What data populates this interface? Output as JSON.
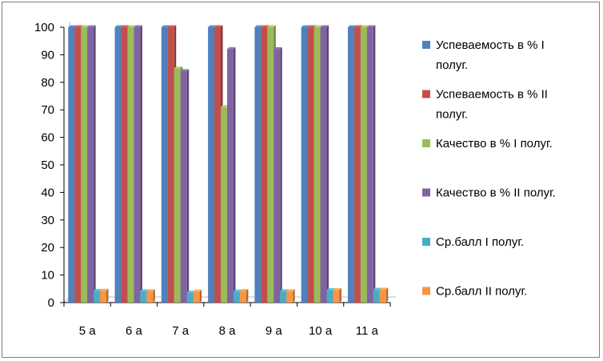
{
  "chart_data": {
    "type": "bar",
    "categories": [
      "5 а",
      "6 а",
      "7 а",
      "8 а",
      "9 а",
      "10 а",
      "11 а"
    ],
    "series": [
      {
        "name": "Успеваемость в % I полуг.",
        "color": "#4f81bd",
        "values": [
          100,
          100,
          100,
          100,
          100,
          100,
          100
        ]
      },
      {
        "name": "Успеваемость в % II полуг.",
        "color": "#c0504d",
        "values": [
          100,
          100,
          100,
          100,
          100,
          100,
          100
        ]
      },
      {
        "name": "Качество в % I полуг.",
        "color": "#9bbb59",
        "values": [
          100,
          100,
          85,
          71,
          100,
          100,
          100
        ]
      },
      {
        "name": "Качество в % II полуг.",
        "color": "#8064a2",
        "values": [
          100,
          100,
          84,
          92,
          92,
          100,
          100
        ]
      },
      {
        "name": "Ср.балл I полуг.",
        "color": "#4bacc6",
        "values": [
          4.2,
          4.1,
          3.6,
          4.0,
          4.1,
          4.5,
          4.6
        ]
      },
      {
        "name": "Ср.балл II полуг.",
        "color": "#f79646",
        "values": [
          4.3,
          4.1,
          4.0,
          4.2,
          4.1,
          4.5,
          4.7
        ]
      }
    ],
    "ylim": [
      0,
      100
    ],
    "yticks": [
      0,
      10,
      20,
      30,
      40,
      50,
      60,
      70,
      80,
      90,
      100
    ],
    "grid": false,
    "legend_position": "right",
    "title": "",
    "xlabel": "",
    "ylabel": ""
  },
  "legend": {
    "labels": [
      [
        "Успеваемость в % I",
        "полуг."
      ],
      [
        "Успеваемость в % II",
        "полуг."
      ],
      [
        "Качество в % I полуг."
      ],
      [
        "Качество в % II полуг."
      ],
      [
        "Ср.балл I полуг."
      ],
      [
        "Ср.балл II полуг."
      ]
    ]
  }
}
